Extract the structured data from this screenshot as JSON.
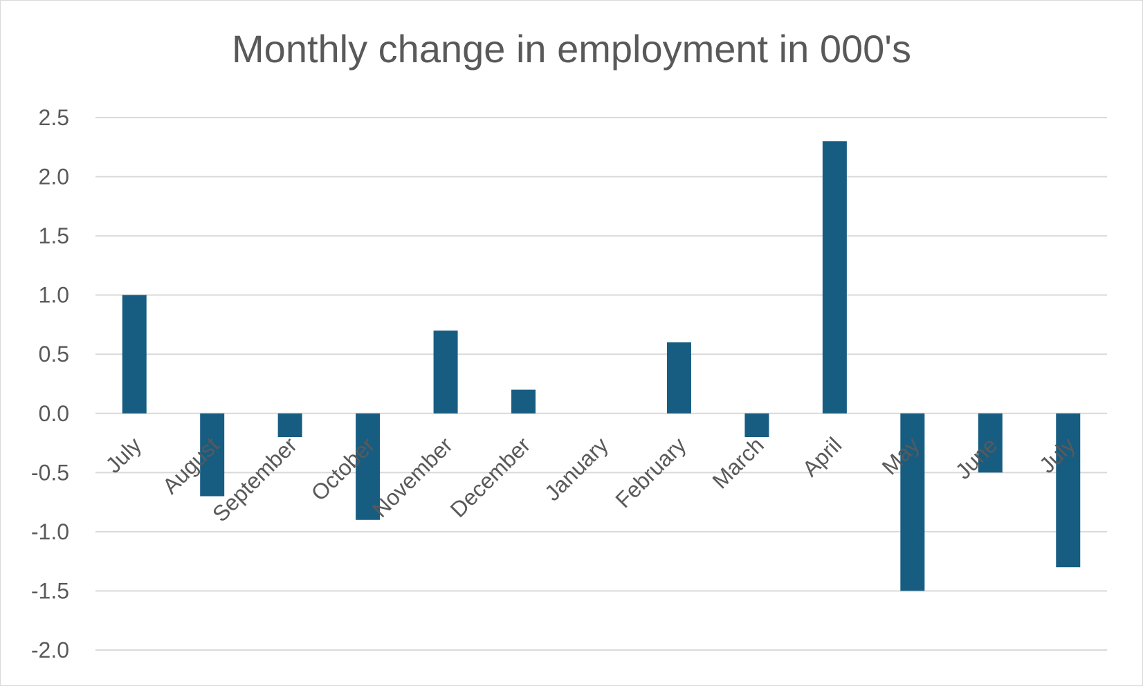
{
  "chart_data": {
    "type": "bar",
    "title": "Monthly change in employment in 000's",
    "xlabel": "",
    "ylabel": "",
    "categories": [
      "July",
      "August",
      "September",
      "October",
      "November",
      "December",
      "January",
      "February",
      "March",
      "April",
      "May",
      "June",
      "July"
    ],
    "series": [
      {
        "values": [
          1.0,
          -0.7,
          -0.2,
          -0.9,
          0.7,
          0.2,
          0.0,
          0.6,
          -0.2,
          2.3,
          -1.5,
          -0.5,
          -1.3
        ],
        "color": "#175d82"
      }
    ],
    "ylim": [
      -2.0,
      2.5
    ],
    "yticks": [
      "2.5",
      "2.0",
      "1.5",
      "1.0",
      "0.5",
      "0.0",
      "-0.5",
      "-1.0",
      "-1.5",
      "-2.0"
    ],
    "ytick_values": [
      2.5,
      2.0,
      1.5,
      1.0,
      0.5,
      0.0,
      -0.5,
      -1.0,
      -1.5,
      -2.0
    ],
    "grid": true,
    "legend": "none",
    "colors": {
      "bar": "#175d82",
      "grid": "#d9d9d9",
      "text": "#595959",
      "border": "#d9d9d9"
    }
  }
}
